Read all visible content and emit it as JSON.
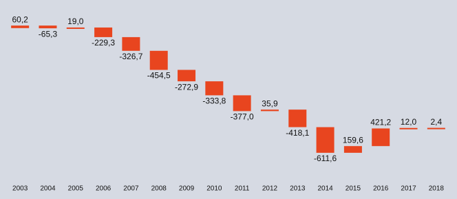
{
  "chart_data": {
    "type": "waterfall",
    "categories": [
      "2003",
      "2004",
      "2005",
      "2006",
      "2007",
      "2008",
      "2009",
      "2010",
      "2011",
      "2012",
      "2013",
      "2014",
      "2015",
      "2016",
      "2017",
      "2018"
    ],
    "values": [
      60.2,
      -65.3,
      19.0,
      -229.3,
      -326.7,
      -454.5,
      -272.9,
      -333.8,
      -377.0,
      35.9,
      -418.1,
      -611.6,
      159.6,
      421.2,
      12.0,
      2.4
    ],
    "value_labels": [
      "60,2",
      "-65,3",
      "19,0",
      "-229,3",
      "-326,7",
      "-454,5",
      "-272,9",
      "-333,8",
      "-377,0",
      "35,9",
      "-418,1",
      "-611,6",
      "159,6",
      "421,2",
      "12,0",
      "2,4"
    ],
    "color": "#e8451f",
    "ylim": [
      -3600,
      670
    ]
  }
}
